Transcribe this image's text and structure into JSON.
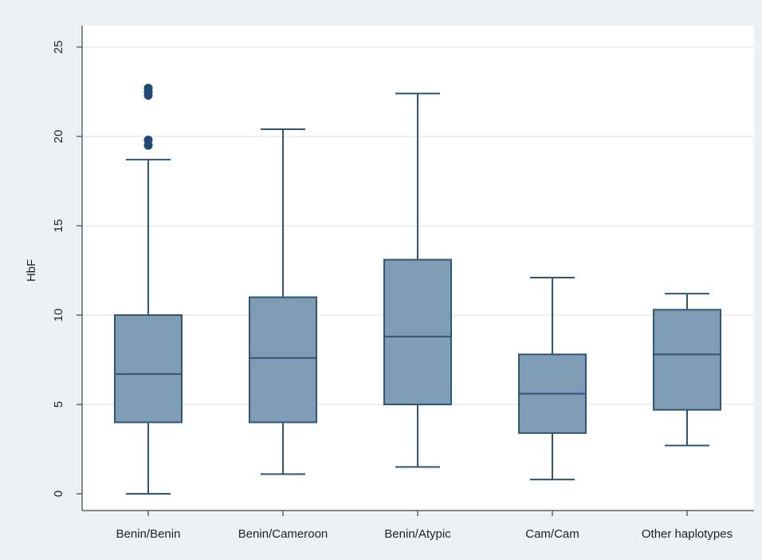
{
  "chart_data": {
    "type": "box",
    "title": "",
    "xlabel": "",
    "ylabel": "HbF",
    "ylim": [
      0,
      26
    ],
    "yticks": [
      0,
      5,
      10,
      15,
      20,
      25
    ],
    "grid": true,
    "categories": [
      "Benin/Benin",
      "Benin/Cameroon",
      "Benin/Atypic",
      "Cam/Cam",
      "Other haplotypes"
    ],
    "boxes": [
      {
        "category": "Benin/Benin",
        "whisker_low": 0,
        "q1": 4.0,
        "median": 6.7,
        "q3": 10.0,
        "whisker_high": 18.7,
        "outliers": [
          19.5,
          19.8,
          22.3,
          22.5,
          22.7
        ]
      },
      {
        "category": "Benin/Cameroon",
        "whisker_low": 1.1,
        "q1": 4.0,
        "median": 7.6,
        "q3": 11.0,
        "whisker_high": 20.4,
        "outliers": []
      },
      {
        "category": "Benin/Atypic",
        "whisker_low": 1.5,
        "q1": 5.0,
        "median": 8.8,
        "q3": 13.1,
        "whisker_high": 22.4,
        "outliers": []
      },
      {
        "category": "Cam/Cam",
        "whisker_low": 0.8,
        "q1": 3.4,
        "median": 5.6,
        "q3": 7.8,
        "whisker_high": 12.1,
        "outliers": []
      },
      {
        "category": "Other haplotypes",
        "whisker_low": 2.7,
        "q1": 4.7,
        "median": 7.8,
        "q3": 10.3,
        "whisker_high": 11.2,
        "outliers": []
      }
    ],
    "colors": {
      "background": "#eaf2f3",
      "plot_background": "#ffffff",
      "box_fill": "#7f9cb5",
      "box_stroke": "#2f5577",
      "outlier": "#1f4a75",
      "grid": "#e4ecee",
      "axis": "#444444"
    }
  }
}
